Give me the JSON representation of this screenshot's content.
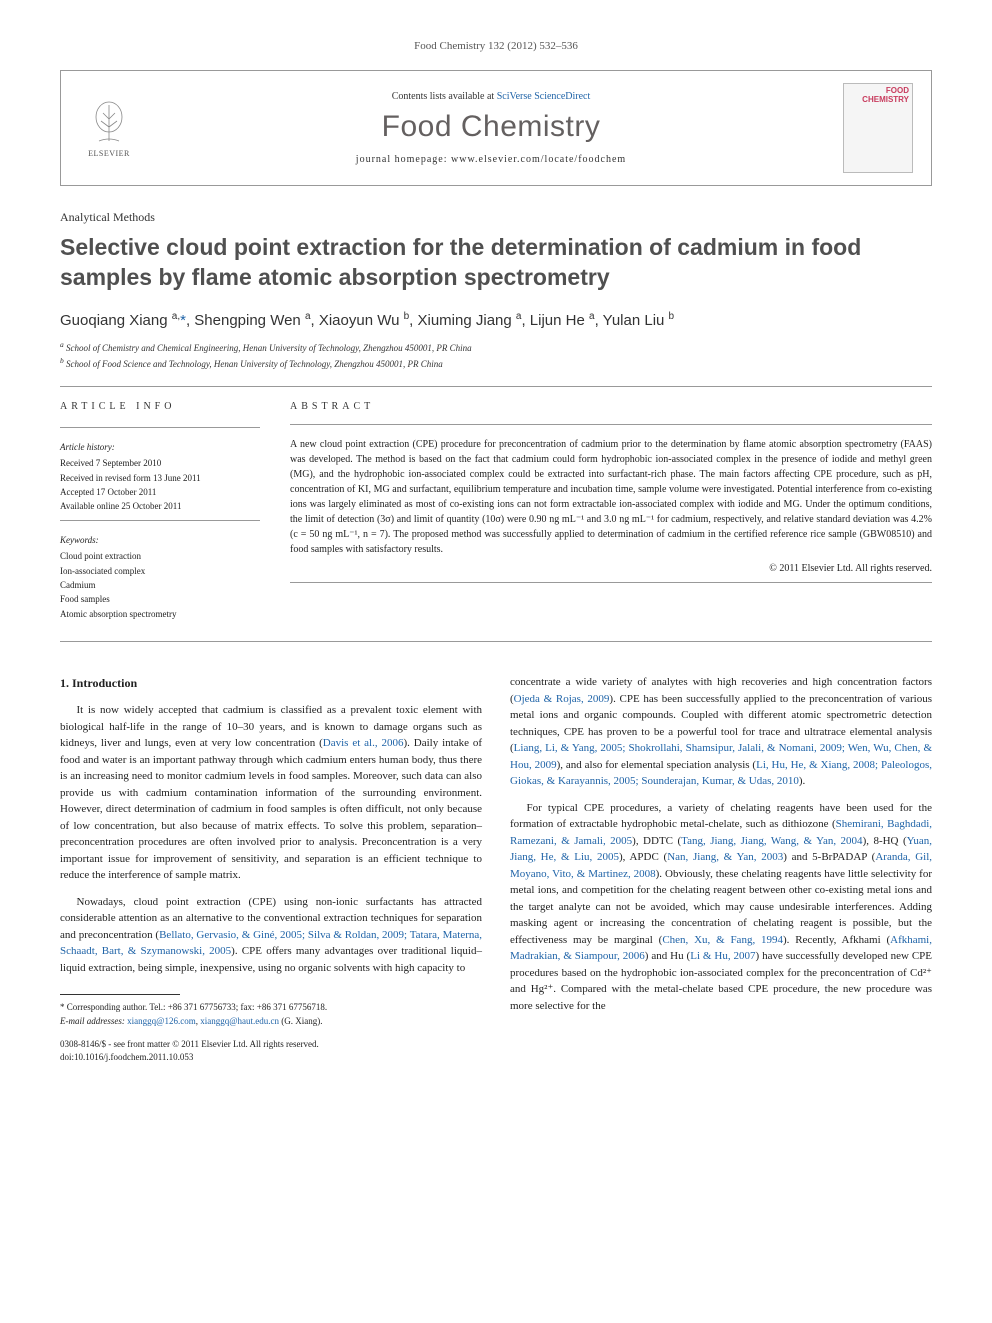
{
  "topline": "Food Chemistry 132 (2012) 532–536",
  "header": {
    "contents_prefix": "Contents lists available at ",
    "contents_link": "SciVerse ScienceDirect",
    "journal": "Food Chemistry",
    "homepage_prefix": "journal homepage: ",
    "homepage": "www.elsevier.com/locate/foodchem",
    "publisher": "ELSEVIER",
    "cover_text": "FOOD CHEMISTRY"
  },
  "section": "Analytical Methods",
  "title": "Selective cloud point extraction for the determination of cadmium in food samples by flame atomic absorption spectrometry",
  "authors_html": "Guoqiang Xiang <sup>a,</sup><span class='star-link'>*</span>, Shengping Wen <sup>a</sup>, Xiaoyun Wu <sup>b</sup>, Xiuming Jiang <sup>a</sup>, Lijun He <sup>a</sup>, Yulan Liu <sup>b</sup>",
  "affiliations": {
    "a": "School of Chemistry and Chemical Engineering, Henan University of Technology, Zhengzhou 450001, PR China",
    "b": "School of Food Science and Technology, Henan University of Technology, Zhengzhou 450001, PR China"
  },
  "article_info": {
    "head": "ARTICLE INFO",
    "history_head": "Article history:",
    "received": "Received 7 September 2010",
    "revised": "Received in revised form 13 June 2011",
    "accepted": "Accepted 17 October 2011",
    "online": "Available online 25 October 2011",
    "keywords_head": "Keywords:",
    "keywords": [
      "Cloud point extraction",
      "Ion-associated complex",
      "Cadmium",
      "Food samples",
      "Atomic absorption spectrometry"
    ]
  },
  "abstract": {
    "head": "ABSTRACT",
    "text": "A new cloud point extraction (CPE) procedure for preconcentration of cadmium prior to the determination by flame atomic absorption spectrometry (FAAS) was developed. The method is based on the fact that cadmium could form hydrophobic ion-associated complex in the presence of iodide and methyl green (MG), and the hydrophobic ion-associated complex could be extracted into surfactant-rich phase. The main factors affecting CPE procedure, such as pH, concentration of KI, MG and surfactant, equilibrium temperature and incubation time, sample volume were investigated. Potential interference from co-existing ions was largely eliminated as most of co-existing ions can not form extractable ion-associated complex with iodide and MG. Under the optimum conditions, the limit of detection (3σ) and limit of quantity (10σ) were 0.90 ng mL⁻¹ and 3.0 ng mL⁻¹ for cadmium, respectively, and relative standard deviation was 4.2% (c = 50 ng mL⁻¹, n = 7). The proposed method was successfully applied to determination of cadmium in the certified reference rice sample (GBW08510) and food samples with satisfactory results.",
    "copyright": "© 2011 Elsevier Ltd. All rights reserved."
  },
  "intro_head": "1. Introduction",
  "col1": {
    "p1": "It is now widely accepted that cadmium is classified as a prevalent toxic element with biological half-life in the range of 10–30 years, and is known to damage organs such as kidneys, liver and lungs, even at very low concentration (",
    "c1": "Davis et al., 2006",
    "p1b": "). Daily intake of food and water is an important pathway through which cadmium enters human body, thus there is an increasing need to monitor cadmium levels in food samples. Moreover, such data can also provide us with cadmium contamination information of the surrounding environment. However, direct determination of cadmium in food samples is often difficult, not only because of low concentration, but also because of matrix effects. To solve this problem, separation–preconcentration procedures are often involved prior to analysis. Preconcentration is a very important issue for improvement of sensitivity, and separation is an efficient technique to reduce the interference of sample matrix.",
    "p2a": "Nowadays, cloud point extraction (CPE) using non-ionic surfactants has attracted considerable attention as an alternative to the conventional extraction techniques for separation and preconcentration (",
    "c2": "Bellato, Gervasio, & Giné, 2005; Silva & Roldan, 2009; Tatara, Materna, Schaadt, Bart, & Szymanowski, 2005",
    "p2b": "). CPE offers many advantages over traditional liquid–liquid extraction, being simple, inexpensive, using no organic solvents with high capacity to"
  },
  "col2": {
    "p1a": "concentrate a wide variety of analytes with high recoveries and high concentration factors (",
    "c1": "Ojeda & Rojas, 2009",
    "p1b": "). CPE has been successfully applied to the preconcentration of various metal ions and organic compounds. Coupled with different atomic spectrometric detection techniques, CPE has proven to be a powerful tool for trace and ultratrace elemental analysis (",
    "c2": "Liang, Li, & Yang, 2005; Shokrollahi, Shamsipur, Jalali, & Nomani, 2009; Wen, Wu, Chen, & Hou, 2009",
    "p1c": "), and also for elemental speciation analysis (",
    "c3": "Li, Hu, He, & Xiang, 2008; Paleologos, Giokas, & Karayannis, 2005; Sounderajan, Kumar, & Udas, 2010",
    "p1d": ").",
    "p2a": "For typical CPE procedures, a variety of chelating reagents have been used for the formation of extractable hydrophobic metal-chelate, such as dithiozone (",
    "c4": "Shemirani, Baghdadi, Ramezani, & Jamali, 2005",
    "p2b": "), DDTC (",
    "c5": "Tang, Jiang, Jiang, Wang, & Yan, 2004",
    "p2c": "), 8-HQ (",
    "c6": "Yuan, Jiang, He, & Liu, 2005",
    "p2d": "), APDC (",
    "c7": "Nan, Jiang, & Yan, 2003",
    "p2e": ") and 5-BrPADAP (",
    "c8": "Aranda, Gil, Moyano, Vito, & Martinez, 2008",
    "p2f": "). Obviously, these chelating reagents have little selectivity for metal ions, and competition for the chelating reagent between other co-existing metal ions and the target analyte can not be avoided, which may cause undesirable interferences. Adding masking agent or increasing the concentration of chelating reagent is possible, but the effectiveness may be marginal (",
    "c9": "Chen, Xu, & Fang, 1994",
    "p2g": "). Recently, Afkhami (",
    "c10": "Afkhami, Madrakian, & Siampour, 2006",
    "p2h": ") and Hu (",
    "c11": "Li & Hu, 2007",
    "p2i": ") have successfully developed new CPE procedures based on the hydrophobic ion-associated complex for the preconcentration of Cd²⁺ and Hg²⁺. Compared with the metal-chelate based CPE procedure, the new procedure was more selective for the"
  },
  "footnote": {
    "corr": "* Corresponding author. Tel.: +86 371 67756733; fax: +86 371 67756718.",
    "email_label": "E-mail addresses:",
    "email1": "xianggq@126.com",
    "email2": "xianggq@haut.edu.cn",
    "email_suffix": "(G. Xiang)."
  },
  "doi": {
    "line1": "0308-8146/$ - see front matter © 2011 Elsevier Ltd. All rights reserved.",
    "line2": "doi:10.1016/j.foodchem.2011.10.053"
  }
}
